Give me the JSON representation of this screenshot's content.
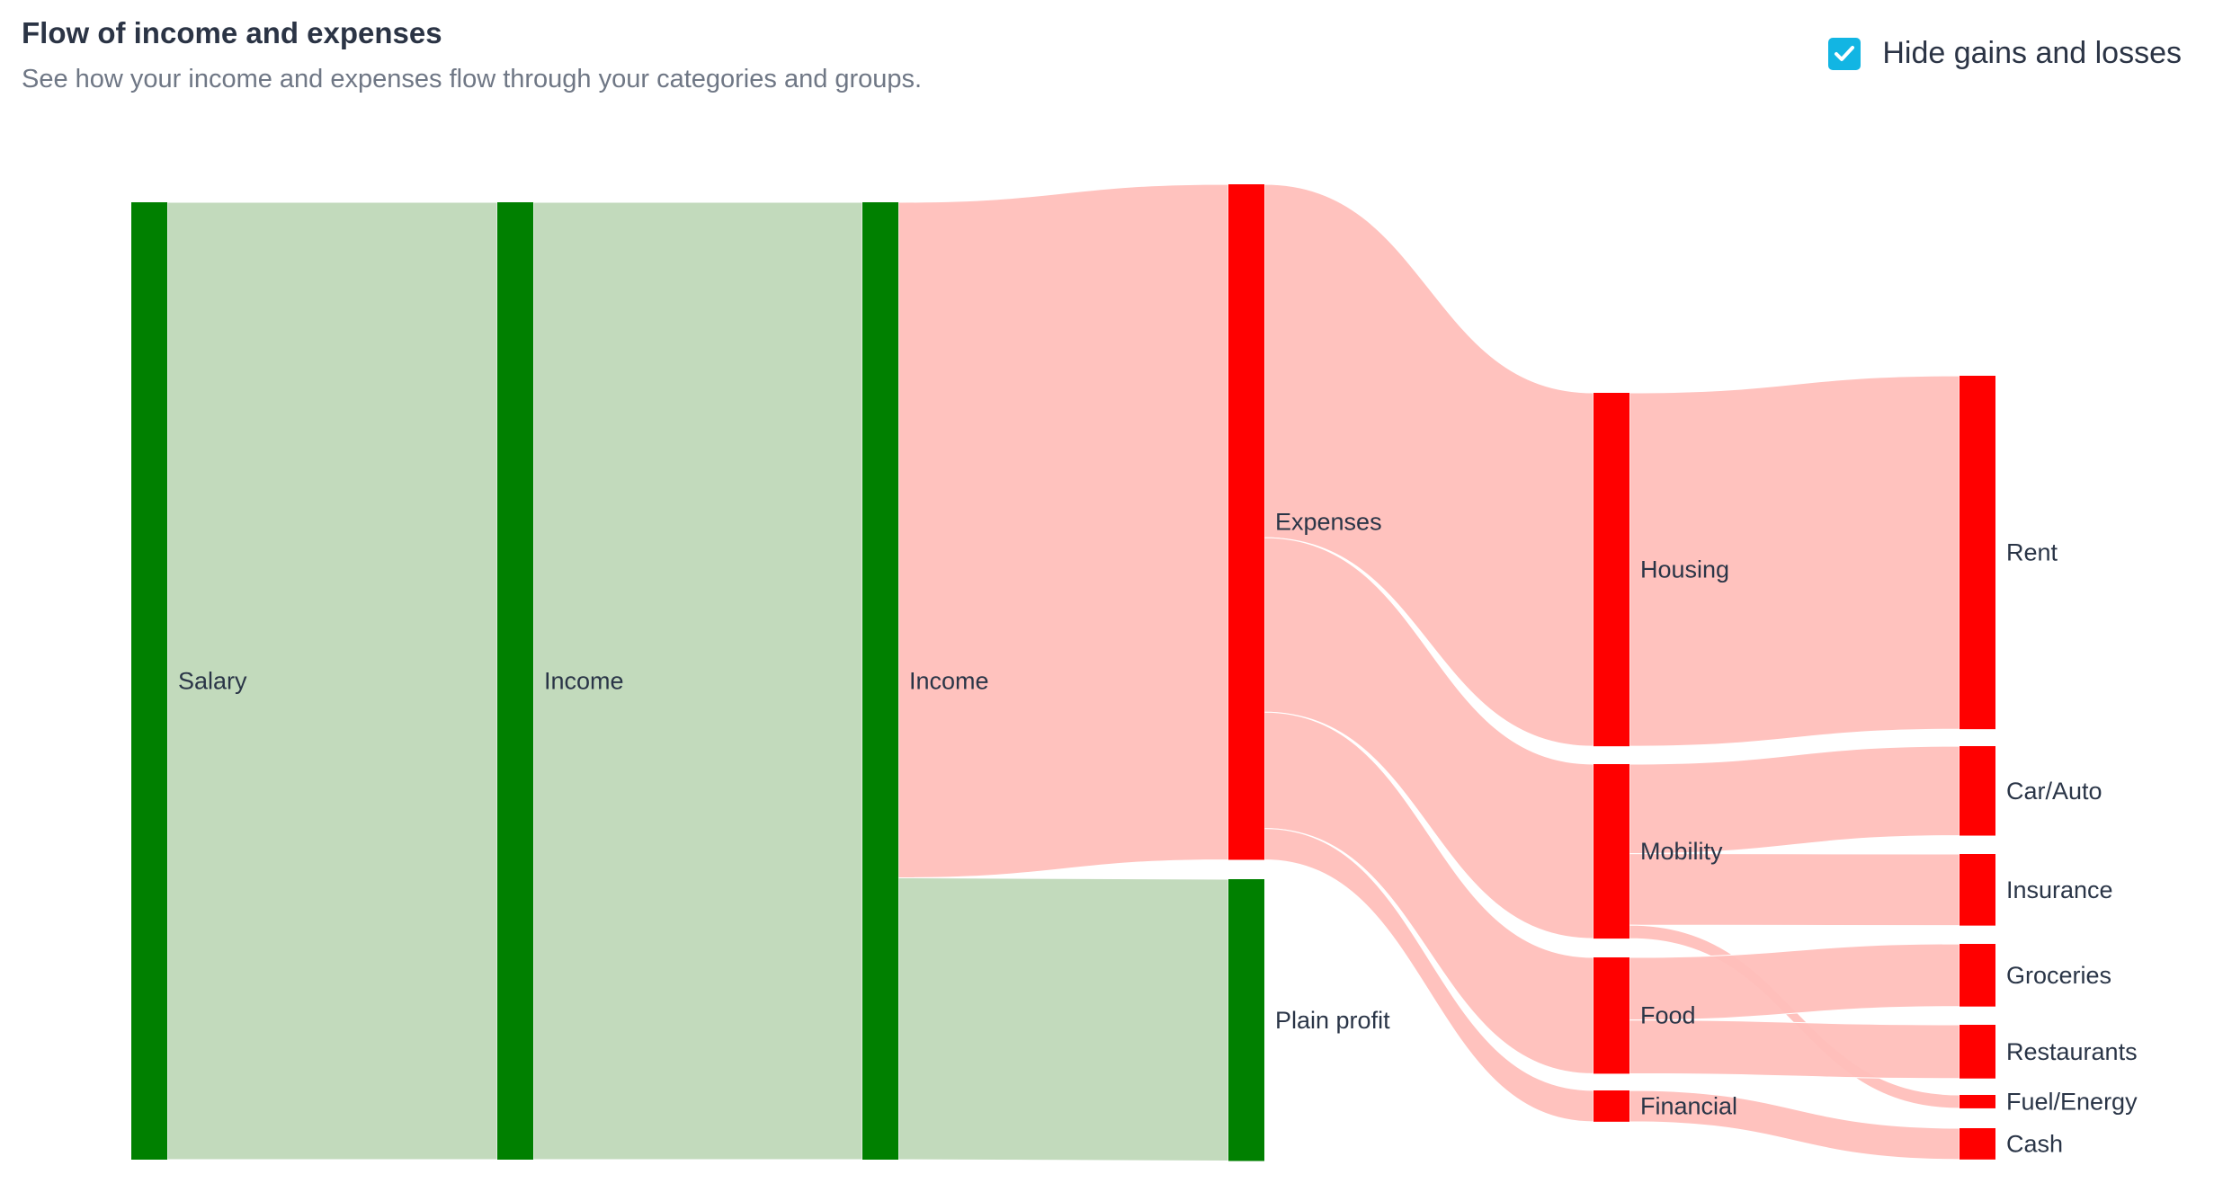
{
  "header": {
    "title": "Flow of income and expenses",
    "subtitle": "See how your income and expenses flow through your categories and groups.",
    "toggle_label": "Hide gains and losses",
    "toggle_checked": true
  },
  "colors": {
    "income_node": "#008000",
    "income_link": "#bfd8b8",
    "expense_node": "#ff0000",
    "expense_link": "#ffbfbb",
    "checkbox": "#12b5e3"
  },
  "chart_data": {
    "type": "sankey",
    "title": "Flow of income and expenses",
    "nodes": [
      {
        "id": "salary",
        "label": "Salary",
        "kind": "income"
      },
      {
        "id": "income1",
        "label": "Income",
        "kind": "income"
      },
      {
        "id": "income2",
        "label": "Income",
        "kind": "income"
      },
      {
        "id": "expenses",
        "label": "Expenses",
        "kind": "expense"
      },
      {
        "id": "profit",
        "label": "Plain profit",
        "kind": "income"
      },
      {
        "id": "housing",
        "label": "Housing",
        "kind": "expense"
      },
      {
        "id": "mobility",
        "label": "Mobility",
        "kind": "expense"
      },
      {
        "id": "food",
        "label": "Food",
        "kind": "expense"
      },
      {
        "id": "financial",
        "label": "Financial",
        "kind": "expense"
      },
      {
        "id": "rent",
        "label": "Rent",
        "kind": "expense"
      },
      {
        "id": "carauto",
        "label": "Car/Auto",
        "kind": "expense"
      },
      {
        "id": "insurance",
        "label": "Insurance",
        "kind": "expense"
      },
      {
        "id": "groceries",
        "label": "Groceries",
        "kind": "expense"
      },
      {
        "id": "restaurants",
        "label": "Restaurants",
        "kind": "expense"
      },
      {
        "id": "fuel",
        "label": "Fuel/Energy",
        "kind": "expense"
      },
      {
        "id": "cash",
        "label": "Cash",
        "kind": "expense"
      }
    ],
    "links": [
      {
        "source": "salary",
        "target": "income1",
        "value": 1070
      },
      {
        "source": "income1",
        "target": "income2",
        "value": 1070
      },
      {
        "source": "income2",
        "target": "expenses",
        "value": 755
      },
      {
        "source": "income2",
        "target": "profit",
        "value": 315
      },
      {
        "source": "expenses",
        "target": "housing",
        "value": 395
      },
      {
        "source": "expenses",
        "target": "mobility",
        "value": 195
      },
      {
        "source": "expenses",
        "target": "food",
        "value": 130
      },
      {
        "source": "expenses",
        "target": "financial",
        "value": 35
      },
      {
        "source": "housing",
        "target": "rent",
        "value": 395
      },
      {
        "source": "mobility",
        "target": "carauto",
        "value": 100
      },
      {
        "source": "mobility",
        "target": "insurance",
        "value": 80
      },
      {
        "source": "mobility",
        "target": "fuel",
        "value": 15
      },
      {
        "source": "food",
        "target": "groceries",
        "value": 70
      },
      {
        "source": "food",
        "target": "restaurants",
        "value": 60
      },
      {
        "source": "financial",
        "target": "cash",
        "value": 35
      }
    ]
  }
}
